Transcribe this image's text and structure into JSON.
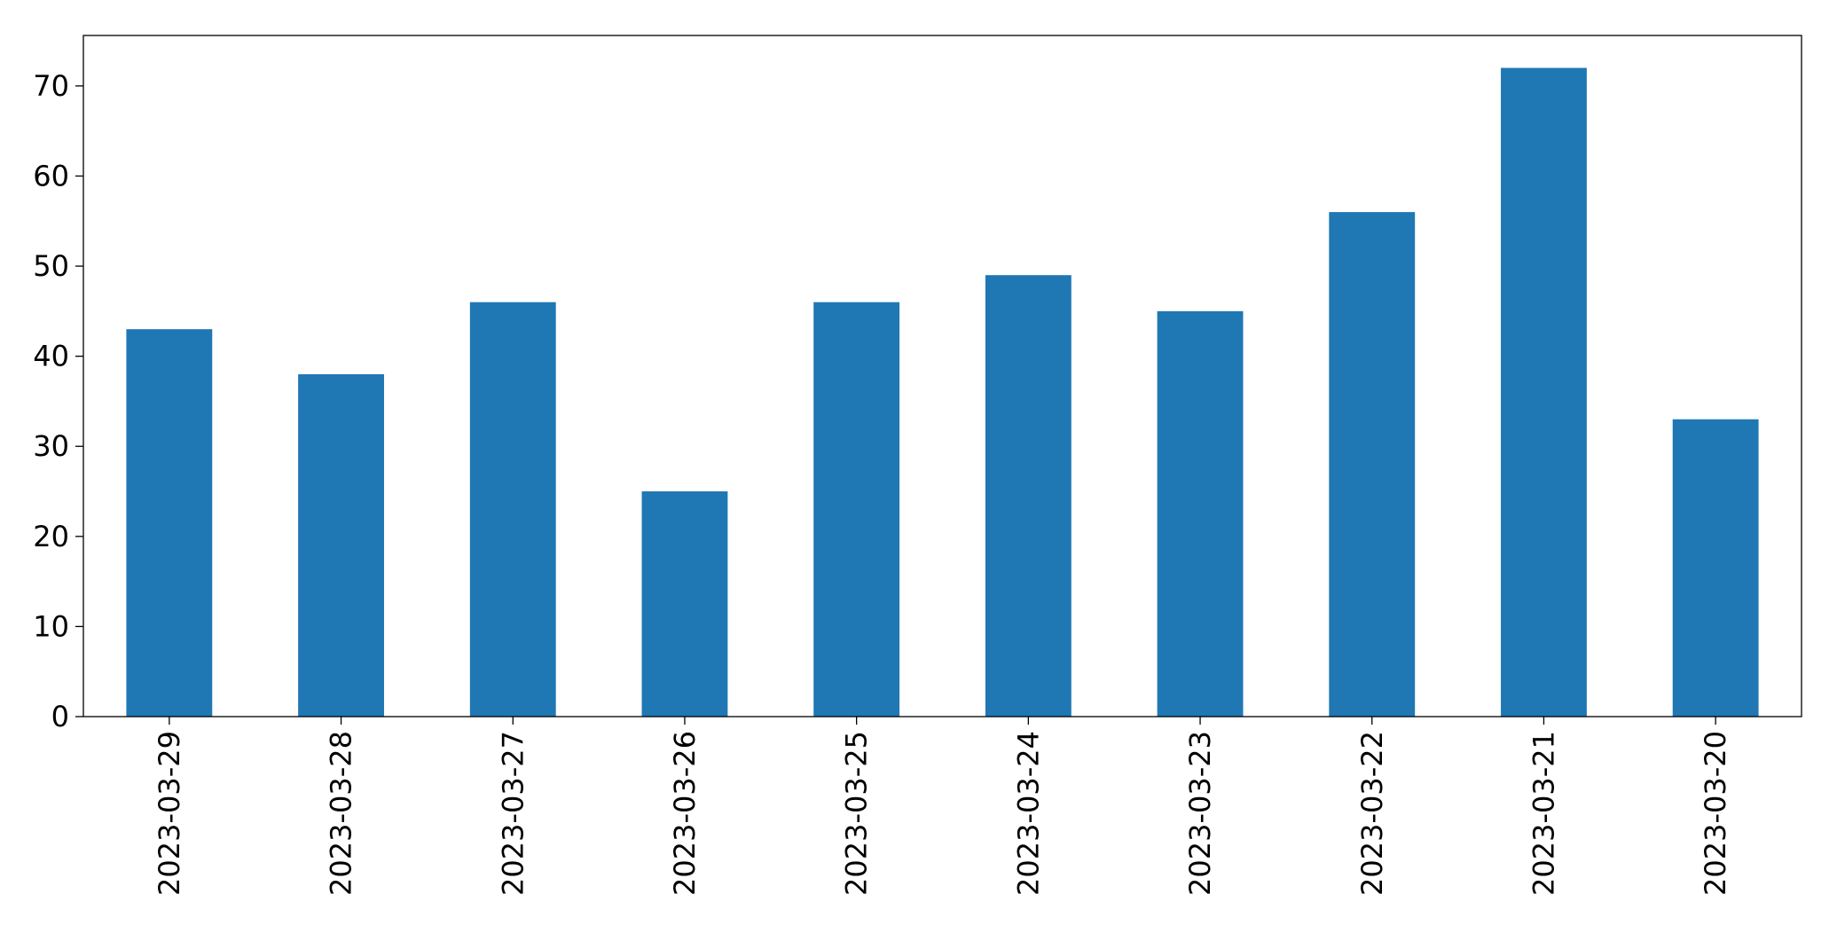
{
  "chart_data": {
    "type": "bar",
    "categories": [
      "2023-03-29",
      "2023-03-28",
      "2023-03-27",
      "2023-03-26",
      "2023-03-25",
      "2023-03-24",
      "2023-03-23",
      "2023-03-22",
      "2023-03-21",
      "2023-03-20"
    ],
    "values": [
      43,
      38,
      46,
      25,
      46,
      49,
      45,
      56,
      72,
      33
    ],
    "color": "#1f77b4",
    "ylim": [
      0,
      75.6
    ],
    "yticks": [
      0,
      10,
      20,
      30,
      40,
      50,
      60,
      70
    ],
    "grid": false
  }
}
